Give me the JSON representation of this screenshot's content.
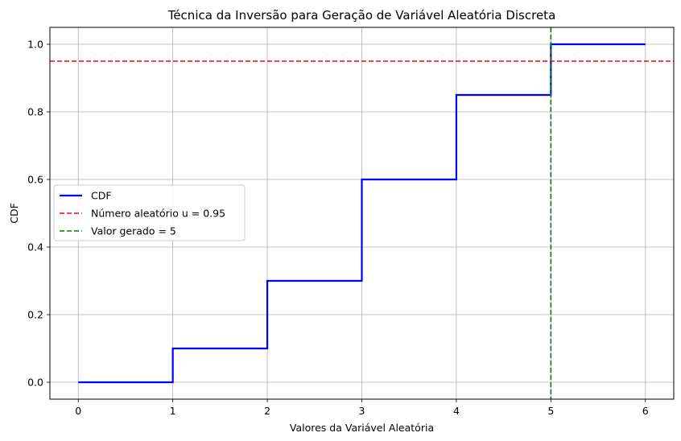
{
  "chart_data": {
    "type": "line",
    "title": "Técnica da Inversão para Geração de Variável Aleatória Discreta",
    "xlabel": "Valores da Variável Aleatória",
    "ylabel": "CDF",
    "xlim": [
      -0.3,
      6.3
    ],
    "ylim": [
      -0.05,
      1.05
    ],
    "xticks": [
      0,
      1,
      2,
      3,
      4,
      5,
      6
    ],
    "yticks": [
      0.0,
      0.2,
      0.4,
      0.6,
      0.8,
      1.0
    ],
    "ytick_labels": [
      "0.0",
      "0.2",
      "0.4",
      "0.6",
      "0.8",
      "1.0"
    ],
    "grid": true,
    "legend_position": "center-left",
    "series": [
      {
        "name": "CDF",
        "style": "step-post",
        "color": "#0000ff",
        "x": [
          0,
          1,
          2,
          3,
          4,
          5,
          6
        ],
        "y": [
          0.0,
          0.1,
          0.3,
          0.6,
          0.85,
          1.0,
          1.0
        ]
      }
    ],
    "hlines": [
      {
        "name": "Número aleatório u = 0.95",
        "y": 0.95,
        "color": "#ff0000",
        "dash": true
      }
    ],
    "vlines": [
      {
        "name": "Valor gerado = 5",
        "x": 5,
        "color": "#008000",
        "dash": true
      }
    ]
  }
}
